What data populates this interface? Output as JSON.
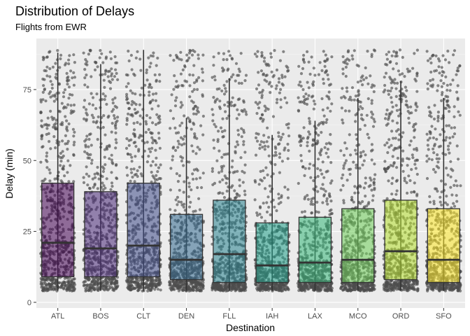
{
  "chart_data": {
    "type": "boxplot",
    "title": "Distribution of Delays",
    "subtitle": "Flights from EWR",
    "xlabel": "Destination",
    "ylabel": "Delay (min)",
    "ylim": [
      0,
      90
    ],
    "yticks": [
      0,
      25,
      50,
      75
    ],
    "grid": true,
    "jitter_points": true,
    "palette": [
      "#440154",
      "#482878",
      "#3e4a89",
      "#31688e",
      "#26828e",
      "#1f9e89",
      "#35b779",
      "#6ece58",
      "#b5de2b",
      "#fde725"
    ],
    "categories": [
      "ATL",
      "BOS",
      "CLT",
      "DEN",
      "FLL",
      "IAH",
      "LAX",
      "MCO",
      "ORD",
      "SFO"
    ],
    "boxes": [
      {
        "category": "ATL",
        "whisker_low": 4,
        "q1": 9,
        "median": 21,
        "q3": 42,
        "whisker_high": 88
      },
      {
        "category": "BOS",
        "whisker_low": 4,
        "q1": 9,
        "median": 19,
        "q3": 39,
        "whisker_high": 84
      },
      {
        "category": "CLT",
        "whisker_low": 4,
        "q1": 9,
        "median": 20,
        "q3": 42,
        "whisker_high": 89
      },
      {
        "category": "DEN",
        "whisker_low": 4,
        "q1": 8,
        "median": 15,
        "q3": 31,
        "whisker_high": 65
      },
      {
        "category": "FLL",
        "whisker_low": 4,
        "q1": 7,
        "median": 17,
        "q3": 36,
        "whisker_high": 79
      },
      {
        "category": "IAH",
        "whisker_low": 4,
        "q1": 7,
        "median": 13,
        "q3": 28,
        "whisker_high": 59
      },
      {
        "category": "LAX",
        "whisker_low": 4,
        "q1": 7,
        "median": 14,
        "q3": 30,
        "whisker_high": 64
      },
      {
        "category": "MCO",
        "whisker_low": 4,
        "q1": 7,
        "median": 15,
        "q3": 33,
        "whisker_high": 72
      },
      {
        "category": "ORD",
        "whisker_low": 4,
        "q1": 8,
        "median": 18,
        "q3": 36,
        "whisker_high": 78
      },
      {
        "category": "SFO",
        "whisker_low": 4,
        "q1": 7,
        "median": 15,
        "q3": 33,
        "whisker_high": 72
      }
    ]
  }
}
